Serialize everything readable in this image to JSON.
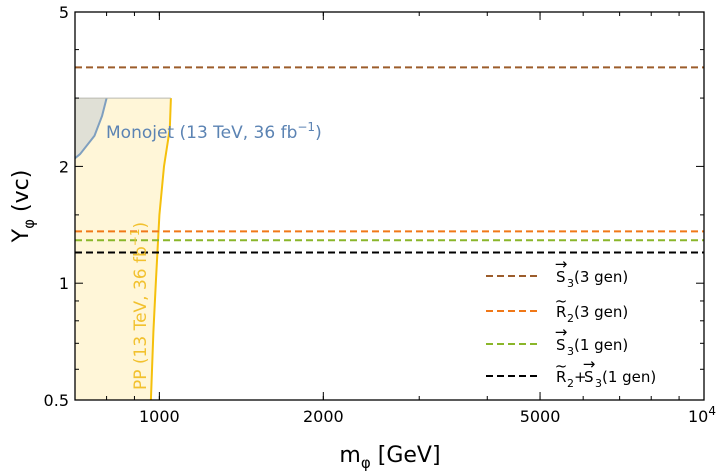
{
  "chart_data": {
    "type": "line",
    "title": "",
    "xlabel": "m",
    "xlabel_sub": "φ",
    "xlabel_unit": " [GeV]",
    "ylabel": "Y",
    "ylabel_sub": "φ",
    "ylabel_unit": " (vc)",
    "xscale": "log",
    "yscale": "log",
    "xlim": [
      700,
      10000
    ],
    "ylim": [
      0.5,
      5
    ],
    "x_ticks": [
      {
        "value": 1000,
        "label": "1000"
      },
      {
        "value": 2000,
        "label": "2000"
      },
      {
        "value": 5000,
        "label": "5000"
      },
      {
        "value": 10000,
        "label": "10",
        "exp": "4"
      }
    ],
    "y_ticks": [
      {
        "value": 0.5,
        "label": "0.5"
      },
      {
        "value": 1,
        "label": "1"
      },
      {
        "value": 2,
        "label": "2"
      },
      {
        "value": 5,
        "label": "5"
      }
    ],
    "series": [
      {
        "name": "S3(3 gen)",
        "base": "S",
        "sub": "3",
        "accent": "vec",
        "suffix": "(3 gen)",
        "color": "#9c5c2b",
        "y": 3.6
      },
      {
        "name": "R2(3 gen)",
        "base": "R",
        "sub": "2",
        "accent": "tilde",
        "suffix": "(3 gen)",
        "color": "#f07818",
        "y": 1.36
      },
      {
        "name": "S3(1 gen)",
        "base": "S",
        "sub": "3",
        "accent": "vec",
        "suffix": "(1 gen)",
        "color": "#8ab62a",
        "y": 1.29
      },
      {
        "name": "R2+S3(1 gen)",
        "combo": true,
        "suffix": "(1 gen)",
        "color": "#000000",
        "y": 1.2
      }
    ],
    "regions": [
      {
        "name": "PP",
        "fill": "#fff6d8",
        "stroke": "#f5c00c",
        "boundary": [
          [
            1050,
            3.0
          ],
          [
            1045,
            2.5
          ],
          [
            1020,
            2.0
          ],
          [
            1000,
            1.5
          ],
          [
            985,
            1.0
          ],
          [
            975,
            0.75
          ],
          [
            965,
            0.5
          ]
        ]
      },
      {
        "name": "Monojet",
        "fill": "#e0e0d6",
        "stroke": "#7f9fbf",
        "boundary": [
          [
            800,
            3.0
          ],
          [
            785,
            2.7
          ],
          [
            760,
            2.4
          ],
          [
            715,
            2.15
          ],
          [
            700,
            2.1
          ]
        ]
      }
    ],
    "region_top": 3.0,
    "annotations": {
      "monojet": {
        "text": "Monojet (13 TeV, 36 fb",
        "sup": "−1",
        "close": ")"
      },
      "pp": {
        "text": "PP (13 TeV, 36 fb",
        "sup": "−1",
        "close": ")"
      }
    },
    "legend_position": "bottom-right"
  }
}
